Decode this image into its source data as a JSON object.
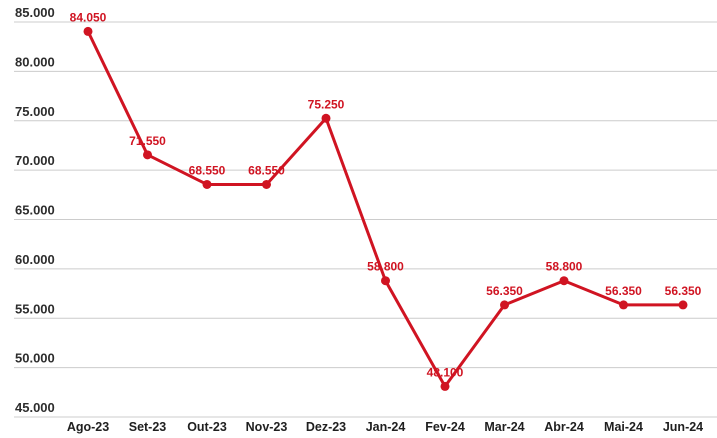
{
  "chart_data": {
    "type": "line",
    "title": "",
    "xlabel": "",
    "ylabel": "",
    "categories": [
      "Ago-23",
      "Set-23",
      "Out-23",
      "Nov-23",
      "Dez-23",
      "Jan-24",
      "Fev-24",
      "Mar-24",
      "Abr-24",
      "Mai-24",
      "Jun-24"
    ],
    "values": [
      84050,
      71550,
      68550,
      68550,
      75250,
      58800,
      48100,
      56350,
      58800,
      56350,
      56350
    ],
    "point_labels": [
      "84.050",
      "71.550",
      "68.550",
      "68.550",
      "75.250",
      "58.800",
      "48.100",
      "56.350",
      "58.800",
      "56.350",
      "56.350"
    ],
    "y_ticks": [
      {
        "value": 85000,
        "label": "85.000"
      },
      {
        "value": 80000,
        "label": "80.000"
      },
      {
        "value": 75000,
        "label": "75.000"
      },
      {
        "value": 70000,
        "label": "70.000"
      },
      {
        "value": 65000,
        "label": "65.000"
      },
      {
        "value": 60000,
        "label": "60.000"
      },
      {
        "value": 55000,
        "label": "55.000"
      },
      {
        "value": 50000,
        "label": "50.000"
      },
      {
        "value": 45000,
        "label": "45.000"
      }
    ],
    "ylim": [
      45000,
      85000
    ],
    "grid": true,
    "legend": "none",
    "colors": {
      "line": "#d01422",
      "point": "#d01422",
      "data_label": "#d01422",
      "gridline": "#cccccc",
      "axis_text": "#2d2d2d",
      "background": "#ffffff"
    }
  }
}
